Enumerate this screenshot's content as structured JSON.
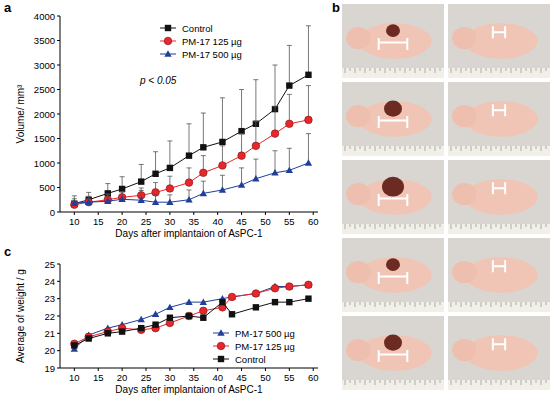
{
  "chart_data": [
    {
      "type": "line",
      "title": "a",
      "x_label": "Days after implantaion of AsPC-1",
      "y_label": "Volume/ mm³",
      "annotation": "p < 0.05",
      "x": [
        10,
        13,
        17,
        20,
        24,
        27,
        30,
        34,
        37,
        41,
        45,
        48,
        52,
        55,
        59
      ],
      "xlim": [
        7,
        61
      ],
      "xticks": [
        10,
        15,
        20,
        25,
        30,
        35,
        40,
        45,
        50,
        55,
        60
      ],
      "ylim": [
        0,
        4000
      ],
      "yticks": [
        0,
        500,
        1000,
        1500,
        2000,
        2500,
        3000,
        3500,
        4000
      ],
      "legend": "upper left",
      "series": [
        {
          "name": "Control",
          "color": "#111111",
          "marker": "square",
          "values": [
            170,
            250,
            380,
            470,
            620,
            780,
            900,
            1150,
            1320,
            1430,
            1650,
            1800,
            2100,
            2580,
            2800
          ],
          "errors": [
            100,
            150,
            200,
            250,
            350,
            450,
            550,
            650,
            700,
            900,
            850,
            900,
            900,
            820,
            1000
          ]
        },
        {
          "name": "PM-17 125 µg",
          "color": "#e8262b",
          "marker": "circle",
          "values": [
            150,
            200,
            250,
            300,
            340,
            400,
            480,
            600,
            800,
            950,
            1150,
            1350,
            1600,
            1800,
            1880
          ],
          "errors": [
            60,
            80,
            100,
            120,
            150,
            200,
            250,
            300,
            350,
            400,
            450,
            500,
            550,
            600,
            700
          ]
        },
        {
          "name": "PM-17 500 µg",
          "color": "#1f3f9a",
          "marker": "triangle",
          "values": [
            180,
            200,
            220,
            260,
            240,
            200,
            200,
            250,
            380,
            450,
            550,
            680,
            800,
            850,
            1000
          ],
          "errors": [
            150,
            120,
            150,
            150,
            200,
            150,
            150,
            200,
            250,
            300,
            350,
            400,
            450,
            450,
            600
          ]
        }
      ]
    },
    {
      "type": "image",
      "title": "b"
    },
    {
      "type": "line",
      "title": "c",
      "x_label": "Days after implantaion of AsPC-1",
      "y_label": "Average of weight / g",
      "x": [
        10,
        13,
        17,
        20,
        24,
        27,
        30,
        34,
        37,
        41,
        43,
        48,
        52,
        55,
        59
      ],
      "xlim": [
        7,
        61
      ],
      "xticks": [
        10,
        15,
        20,
        25,
        30,
        35,
        40,
        45,
        50,
        55,
        60
      ],
      "ylim": [
        19,
        25
      ],
      "yticks": [
        19,
        20,
        21,
        22,
        23,
        24,
        25
      ],
      "legend": "lower right",
      "series": [
        {
          "name": "PM-17 500 µg",
          "color": "#1f3f9a",
          "marker": "triangle",
          "values": [
            20.1,
            20.9,
            21.3,
            21.5,
            21.8,
            22.1,
            22.5,
            22.8,
            22.8,
            23.0,
            23.1,
            23.3,
            23.7,
            23.7,
            23.8
          ]
        },
        {
          "name": "PM-17 125 µg",
          "color": "#e8262b",
          "marker": "circle",
          "values": [
            20.4,
            20.8,
            21.1,
            21.3,
            21.2,
            21.3,
            21.6,
            22.0,
            22.3,
            22.5,
            23.1,
            23.3,
            23.6,
            23.7,
            23.8
          ]
        },
        {
          "name": "Control",
          "color": "#111111",
          "marker": "square",
          "values": [
            20.3,
            20.7,
            21.0,
            21.1,
            21.3,
            21.5,
            21.9,
            22.0,
            21.9,
            22.8,
            22.1,
            22.5,
            22.8,
            22.8,
            23.0
          ]
        }
      ]
    }
  ]
}
